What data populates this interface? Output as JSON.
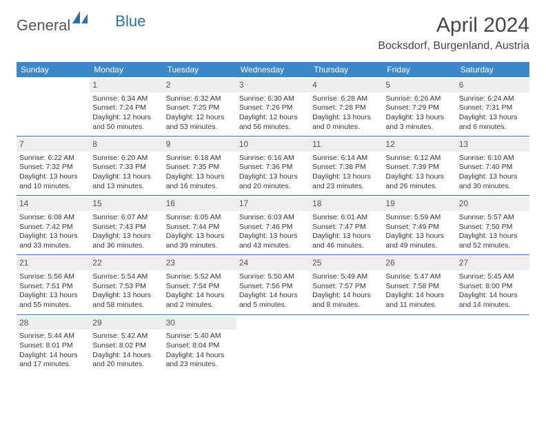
{
  "brand": {
    "part1": "General",
    "part2": "Blue"
  },
  "title": "April 2024",
  "location": "Bocksdorf, Burgenland, Austria",
  "weekdays": [
    "Sunday",
    "Monday",
    "Tuesday",
    "Wednesday",
    "Thursday",
    "Friday",
    "Saturday"
  ],
  "colors": {
    "header_bg": "#3b87c8",
    "header_text": "#ffffff",
    "row_border": "#3b6e9e",
    "daynum_bg": "#eeeeee",
    "text": "#333333",
    "logo_blue": "#2f6fa7"
  },
  "weeks": [
    [
      {
        "num": "",
        "sunrise": "",
        "sunset": "",
        "daylight": ""
      },
      {
        "num": "1",
        "sunrise": "Sunrise: 6:34 AM",
        "sunset": "Sunset: 7:24 PM",
        "daylight": "Daylight: 12 hours and 50 minutes."
      },
      {
        "num": "2",
        "sunrise": "Sunrise: 6:32 AM",
        "sunset": "Sunset: 7:25 PM",
        "daylight": "Daylight: 12 hours and 53 minutes."
      },
      {
        "num": "3",
        "sunrise": "Sunrise: 6:30 AM",
        "sunset": "Sunset: 7:26 PM",
        "daylight": "Daylight: 12 hours and 56 minutes."
      },
      {
        "num": "4",
        "sunrise": "Sunrise: 6:28 AM",
        "sunset": "Sunset: 7:28 PM",
        "daylight": "Daylight: 13 hours and 0 minutes."
      },
      {
        "num": "5",
        "sunrise": "Sunrise: 6:26 AM",
        "sunset": "Sunset: 7:29 PM",
        "daylight": "Daylight: 13 hours and 3 minutes."
      },
      {
        "num": "6",
        "sunrise": "Sunrise: 6:24 AM",
        "sunset": "Sunset: 7:31 PM",
        "daylight": "Daylight: 13 hours and 6 minutes."
      }
    ],
    [
      {
        "num": "7",
        "sunrise": "Sunrise: 6:22 AM",
        "sunset": "Sunset: 7:32 PM",
        "daylight": "Daylight: 13 hours and 10 minutes."
      },
      {
        "num": "8",
        "sunrise": "Sunrise: 6:20 AM",
        "sunset": "Sunset: 7:33 PM",
        "daylight": "Daylight: 13 hours and 13 minutes."
      },
      {
        "num": "9",
        "sunrise": "Sunrise: 6:18 AM",
        "sunset": "Sunset: 7:35 PM",
        "daylight": "Daylight: 13 hours and 16 minutes."
      },
      {
        "num": "10",
        "sunrise": "Sunrise: 6:16 AM",
        "sunset": "Sunset: 7:36 PM",
        "daylight": "Daylight: 13 hours and 20 minutes."
      },
      {
        "num": "11",
        "sunrise": "Sunrise: 6:14 AM",
        "sunset": "Sunset: 7:38 PM",
        "daylight": "Daylight: 13 hours and 23 minutes."
      },
      {
        "num": "12",
        "sunrise": "Sunrise: 6:12 AM",
        "sunset": "Sunset: 7:39 PM",
        "daylight": "Daylight: 13 hours and 26 minutes."
      },
      {
        "num": "13",
        "sunrise": "Sunrise: 6:10 AM",
        "sunset": "Sunset: 7:40 PM",
        "daylight": "Daylight: 13 hours and 30 minutes."
      }
    ],
    [
      {
        "num": "14",
        "sunrise": "Sunrise: 6:08 AM",
        "sunset": "Sunset: 7:42 PM",
        "daylight": "Daylight: 13 hours and 33 minutes."
      },
      {
        "num": "15",
        "sunrise": "Sunrise: 6:07 AM",
        "sunset": "Sunset: 7:43 PM",
        "daylight": "Daylight: 13 hours and 36 minutes."
      },
      {
        "num": "16",
        "sunrise": "Sunrise: 6:05 AM",
        "sunset": "Sunset: 7:44 PM",
        "daylight": "Daylight: 13 hours and 39 minutes."
      },
      {
        "num": "17",
        "sunrise": "Sunrise: 6:03 AM",
        "sunset": "Sunset: 7:46 PM",
        "daylight": "Daylight: 13 hours and 43 minutes."
      },
      {
        "num": "18",
        "sunrise": "Sunrise: 6:01 AM",
        "sunset": "Sunset: 7:47 PM",
        "daylight": "Daylight: 13 hours and 46 minutes."
      },
      {
        "num": "19",
        "sunrise": "Sunrise: 5:59 AM",
        "sunset": "Sunset: 7:49 PM",
        "daylight": "Daylight: 13 hours and 49 minutes."
      },
      {
        "num": "20",
        "sunrise": "Sunrise: 5:57 AM",
        "sunset": "Sunset: 7:50 PM",
        "daylight": "Daylight: 13 hours and 52 minutes."
      }
    ],
    [
      {
        "num": "21",
        "sunrise": "Sunrise: 5:56 AM",
        "sunset": "Sunset: 7:51 PM",
        "daylight": "Daylight: 13 hours and 55 minutes."
      },
      {
        "num": "22",
        "sunrise": "Sunrise: 5:54 AM",
        "sunset": "Sunset: 7:53 PM",
        "daylight": "Daylight: 13 hours and 58 minutes."
      },
      {
        "num": "23",
        "sunrise": "Sunrise: 5:52 AM",
        "sunset": "Sunset: 7:54 PM",
        "daylight": "Daylight: 14 hours and 2 minutes."
      },
      {
        "num": "24",
        "sunrise": "Sunrise: 5:50 AM",
        "sunset": "Sunset: 7:56 PM",
        "daylight": "Daylight: 14 hours and 5 minutes."
      },
      {
        "num": "25",
        "sunrise": "Sunrise: 5:49 AM",
        "sunset": "Sunset: 7:57 PM",
        "daylight": "Daylight: 14 hours and 8 minutes."
      },
      {
        "num": "26",
        "sunrise": "Sunrise: 5:47 AM",
        "sunset": "Sunset: 7:58 PM",
        "daylight": "Daylight: 14 hours and 11 minutes."
      },
      {
        "num": "27",
        "sunrise": "Sunrise: 5:45 AM",
        "sunset": "Sunset: 8:00 PM",
        "daylight": "Daylight: 14 hours and 14 minutes."
      }
    ],
    [
      {
        "num": "28",
        "sunrise": "Sunrise: 5:44 AM",
        "sunset": "Sunset: 8:01 PM",
        "daylight": "Daylight: 14 hours and 17 minutes."
      },
      {
        "num": "29",
        "sunrise": "Sunrise: 5:42 AM",
        "sunset": "Sunset: 8:02 PM",
        "daylight": "Daylight: 14 hours and 20 minutes."
      },
      {
        "num": "30",
        "sunrise": "Sunrise: 5:40 AM",
        "sunset": "Sunset: 8:04 PM",
        "daylight": "Daylight: 14 hours and 23 minutes."
      },
      {
        "num": "",
        "sunrise": "",
        "sunset": "",
        "daylight": ""
      },
      {
        "num": "",
        "sunrise": "",
        "sunset": "",
        "daylight": ""
      },
      {
        "num": "",
        "sunrise": "",
        "sunset": "",
        "daylight": ""
      },
      {
        "num": "",
        "sunrise": "",
        "sunset": "",
        "daylight": ""
      }
    ]
  ]
}
